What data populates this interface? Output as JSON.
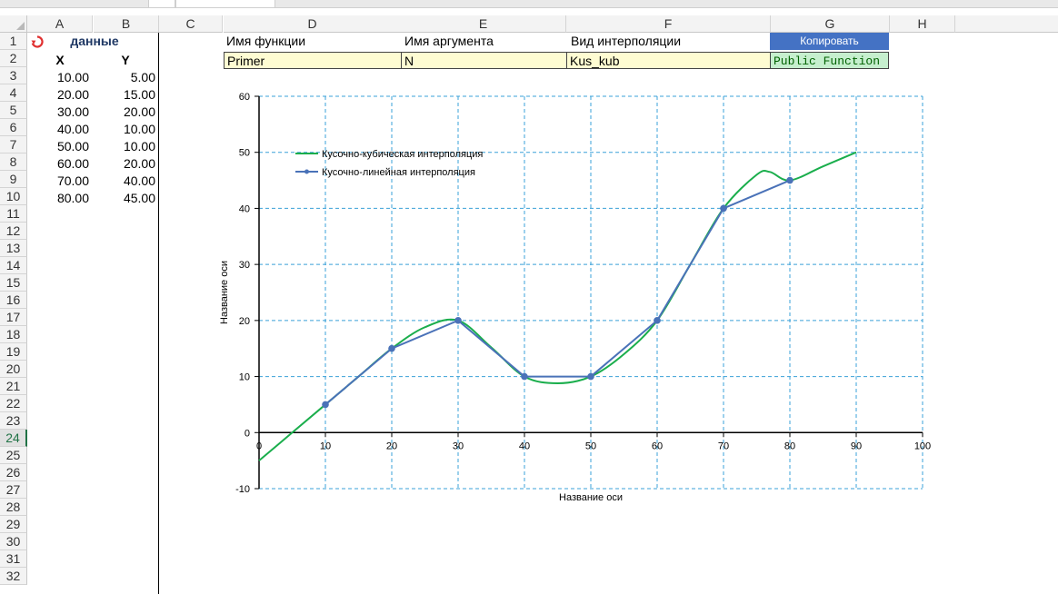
{
  "sheet": {
    "columns": [
      "A",
      "B",
      "C",
      "D",
      "E",
      "F",
      "G",
      "H"
    ],
    "rows": [
      "1",
      "2",
      "3",
      "4",
      "5",
      "6",
      "7",
      "8",
      "9",
      "10",
      "11",
      "12",
      "13",
      "14",
      "15",
      "16",
      "17",
      "18",
      "19",
      "20",
      "21",
      "22",
      "23",
      "24",
      "25",
      "26",
      "27",
      "28",
      "29",
      "30",
      "31",
      "32"
    ],
    "selected_row": "24",
    "data_header": "данные",
    "x_header": "X",
    "y_header": "Y",
    "x_values": [
      "10.00",
      "20.00",
      "30.00",
      "40.00",
      "50.00",
      "60.00",
      "70.00",
      "80.00"
    ],
    "y_values": [
      "5.00",
      "15.00",
      "20.00",
      "10.00",
      "10.00",
      "20.00",
      "40.00",
      "45.00"
    ],
    "refresh_icon": "refresh-icon",
    "refresh_icon_color": "#e03030"
  },
  "form": {
    "func_name_label": "Имя функции",
    "arg_name_label": "Имя аргумента",
    "interp_label": "Вид интерполяции",
    "func_name_value": "Primer",
    "arg_name_value": "N",
    "interp_value": "Kus_kub",
    "copy_button": "Копировать",
    "public_function": "Public Function",
    "copy_button_color": "#4472c4",
    "public_function_bg": "#c6efce"
  },
  "chart_data": {
    "type": "line",
    "xlabel": "Название оси",
    "ylabel": "Название оси",
    "xlim": [
      0,
      100
    ],
    "ylim": [
      -10,
      60
    ],
    "x_ticks": [
      "0",
      "10",
      "20",
      "30",
      "40",
      "50",
      "60",
      "70",
      "80",
      "90",
      "100"
    ],
    "y_ticks": [
      "-10",
      "0",
      "10",
      "20",
      "30",
      "40",
      "50",
      "60"
    ],
    "grid": true,
    "legend_position": "top-left",
    "series": [
      {
        "name": "Кусочно-кубическая интерполяция",
        "color": "#1aae4c",
        "x": [
          0,
          5,
          10,
          15,
          20,
          25,
          30,
          35,
          40,
          45,
          50,
          55,
          60,
          65,
          70,
          75,
          77,
          80,
          85,
          90
        ],
        "y": [
          -5,
          0,
          5,
          10,
          15,
          18.8,
          20,
          15.2,
          10,
          8.8,
          10,
          14,
          20,
          30,
          40,
          46,
          46.5,
          45,
          47.5,
          50
        ]
      },
      {
        "name": "Кусочно-линейная интерполяция",
        "color": "#4a72b8",
        "x": [
          10,
          20,
          30,
          40,
          50,
          60,
          70,
          80
        ],
        "y": [
          5,
          15,
          20,
          10,
          10,
          20,
          40,
          45
        ]
      }
    ]
  }
}
